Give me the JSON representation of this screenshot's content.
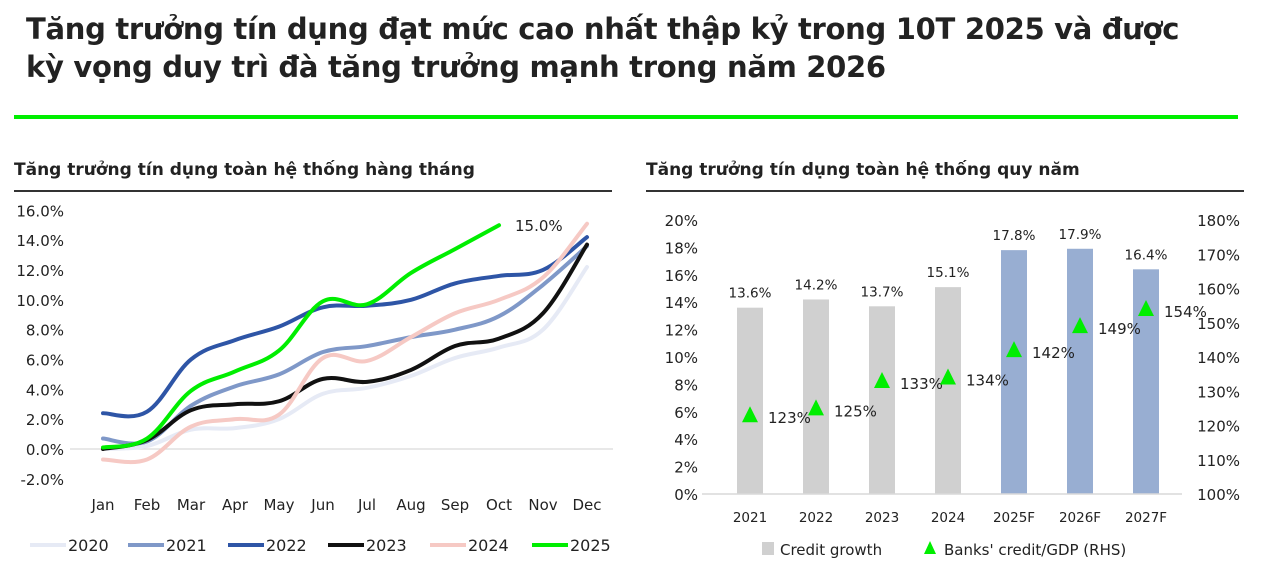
{
  "header": {
    "title_line1": "Tăng trưởng tín dụng đạt mức cao nhất thập kỷ trong 10T 2025 và được",
    "title_line2": "kỳ vọng duy trì đà tăng trưởng mạnh trong năm 2026",
    "accent_color": "#00ee00"
  },
  "left_panel": {
    "title": "Tăng trưởng tín dụng toàn hệ thống hàng tháng"
  },
  "right_panel": {
    "title": "Tăng trưởng tín dụng toàn hệ thống quy năm"
  },
  "chart_data": [
    {
      "type": "line",
      "title": "Tăng trưởng tín dụng toàn hệ thống hàng tháng",
      "xlabel": "",
      "ylabel": "",
      "x": [
        "Jan",
        "Feb",
        "Mar",
        "Apr",
        "May",
        "Jun",
        "Jul",
        "Aug",
        "Sep",
        "Oct",
        "Nov",
        "Dec"
      ],
      "y_ticks": [
        "16.0%",
        "14.0%",
        "12.0%",
        "10.0%",
        "8.0%",
        "6.0%",
        "4.0%",
        "2.0%",
        "0.0%",
        "-2.0%"
      ],
      "ylim": [
        -2,
        16
      ],
      "grid": false,
      "legend_position": "bottom",
      "annotations": [
        {
          "series": "2025",
          "x": "Oct",
          "label": "15.0%"
        }
      ],
      "series": [
        {
          "name": "2020",
          "color": "#e6eaf5",
          "values": [
            0.0,
            0.2,
            1.3,
            1.4,
            2.0,
            3.7,
            4.1,
            4.9,
            6.1,
            6.8,
            8.0,
            12.2
          ]
        },
        {
          "name": "2021",
          "color": "#7f98c8",
          "values": [
            0.7,
            0.5,
            2.9,
            4.2,
            5.0,
            6.5,
            6.9,
            7.5,
            8.0,
            8.9,
            11.0,
            13.6
          ]
        },
        {
          "name": "2022",
          "color": "#2e55a6",
          "values": [
            2.4,
            2.5,
            6.0,
            7.3,
            8.2,
            9.5,
            9.6,
            10.0,
            11.1,
            11.6,
            12.0,
            14.2
          ]
        },
        {
          "name": "2023",
          "color": "#111111",
          "values": [
            0.0,
            0.6,
            2.6,
            3.0,
            3.2,
            4.7,
            4.5,
            5.3,
            6.9,
            7.4,
            9.1,
            13.7
          ]
        },
        {
          "name": "2024",
          "color": "#f6c9c4",
          "values": [
            -0.7,
            -0.7,
            1.5,
            2.0,
            2.3,
            6.1,
            5.9,
            7.5,
            9.1,
            10.0,
            11.5,
            15.1
          ]
        },
        {
          "name": "2025",
          "color": "#00ee00",
          "values": [
            0.1,
            0.7,
            3.9,
            5.2,
            6.6,
            9.9,
            9.7,
            11.8,
            13.4,
            15.0,
            null,
            null
          ]
        }
      ]
    },
    {
      "type": "bar",
      "title": "Tăng trưởng tín dụng toàn hệ thống quy năm",
      "categories": [
        "2021",
        "2022",
        "2023",
        "2024",
        "2025F",
        "2026F",
        "2027F"
      ],
      "y_ticks_left": [
        "20%",
        "18%",
        "16%",
        "14%",
        "12%",
        "10%",
        "8%",
        "6%",
        "4%",
        "2%",
        "0%"
      ],
      "y_ticks_right": [
        "180%",
        "170%",
        "160%",
        "150%",
        "140%",
        "130%",
        "120%",
        "110%",
        "100%"
      ],
      "ylim_left": [
        0,
        20
      ],
      "ylim_right": [
        100,
        180
      ],
      "legend_position": "bottom",
      "series": [
        {
          "name": "Credit growth",
          "type": "bar",
          "axis": "left",
          "values": [
            13.6,
            14.2,
            13.7,
            15.1,
            17.8,
            17.9,
            16.4
          ],
          "labels": [
            "13.6%",
            "14.2%",
            "13.7%",
            "15.1%",
            "17.8%",
            "17.9%",
            "16.4%"
          ],
          "colors": [
            "#d0d0d0",
            "#d0d0d0",
            "#d0d0d0",
            "#d0d0d0",
            "#98aed2",
            "#98aed2",
            "#98aed2"
          ]
        },
        {
          "name": "Banks' credit/GDP (RHS)",
          "type": "scatter",
          "marker": "triangle",
          "axis": "right",
          "color": "#00ee00",
          "values": [
            123,
            125,
            133,
            134,
            142,
            149,
            154
          ],
          "labels": [
            "123%",
            "125%",
            "133%",
            "134%",
            "142%",
            "149%",
            "154%"
          ]
        }
      ]
    }
  ]
}
